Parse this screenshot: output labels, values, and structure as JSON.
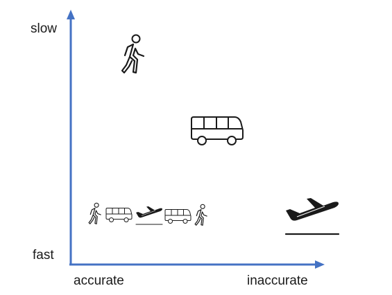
{
  "diagram": {
    "y_axis": {
      "top_label": "slow",
      "bottom_label": "fast"
    },
    "x_axis": {
      "left_label": "accurate",
      "right_label": "inaccurate"
    },
    "items": [
      {
        "name": "walking-person",
        "icon": "walking-person-icon"
      },
      {
        "name": "bus",
        "icon": "bus-icon"
      },
      {
        "name": "airplane",
        "icon": "airplane-takeoff-icon"
      },
      {
        "name": "combined-journey",
        "icons": [
          "walking-person-icon",
          "bus-icon",
          "airplane-takeoff-icon",
          "bus-icon",
          "walking-person-icon"
        ]
      }
    ],
    "axis_color": "#4472C4"
  }
}
